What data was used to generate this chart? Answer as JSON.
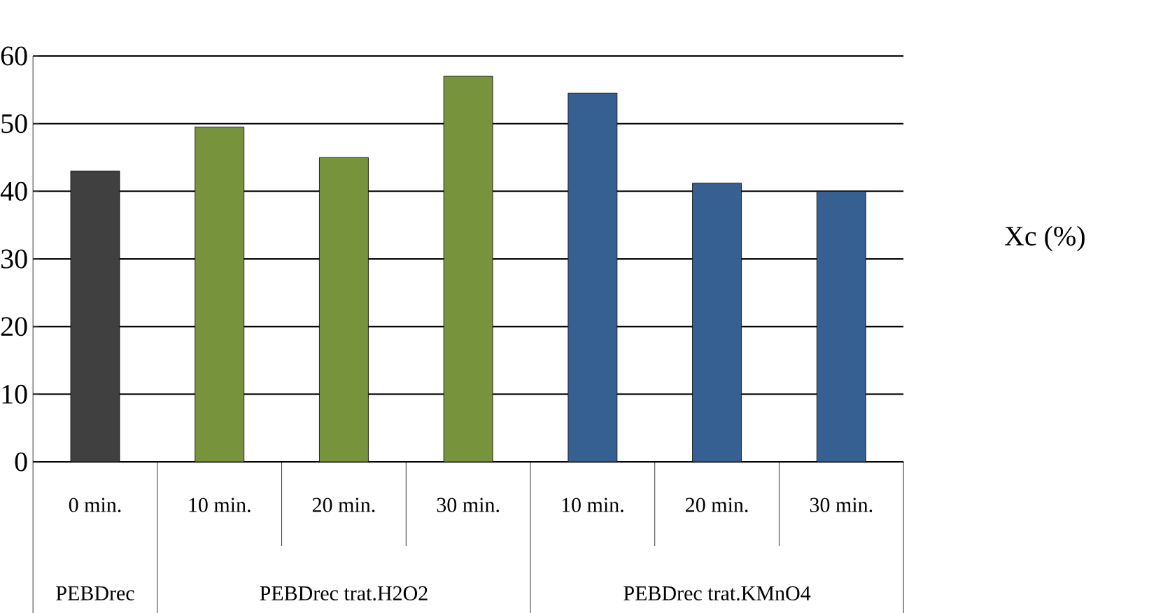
{
  "chart_data": {
    "type": "bar",
    "ylabel": "Xc (%)",
    "categories": [
      "0 min.",
      "10 min.",
      "20 min.",
      "30 min.",
      "10 min.",
      "20 min.",
      "30 min."
    ],
    "values": [
      43,
      49.5,
      45,
      57,
      54.5,
      41.2,
      40
    ],
    "colors": [
      "#404040",
      "#77933c",
      "#77933c",
      "#77933c",
      "#376092",
      "#376092",
      "#376092"
    ],
    "ylim": [
      0,
      60
    ],
    "yticks": [
      0,
      10,
      20,
      30,
      40,
      50,
      60
    ],
    "grid": "y",
    "annotations": [
      "PEBDrec",
      "PEBDrec trat.H2O2",
      "PEBDrec trat.KMnO4"
    ]
  }
}
